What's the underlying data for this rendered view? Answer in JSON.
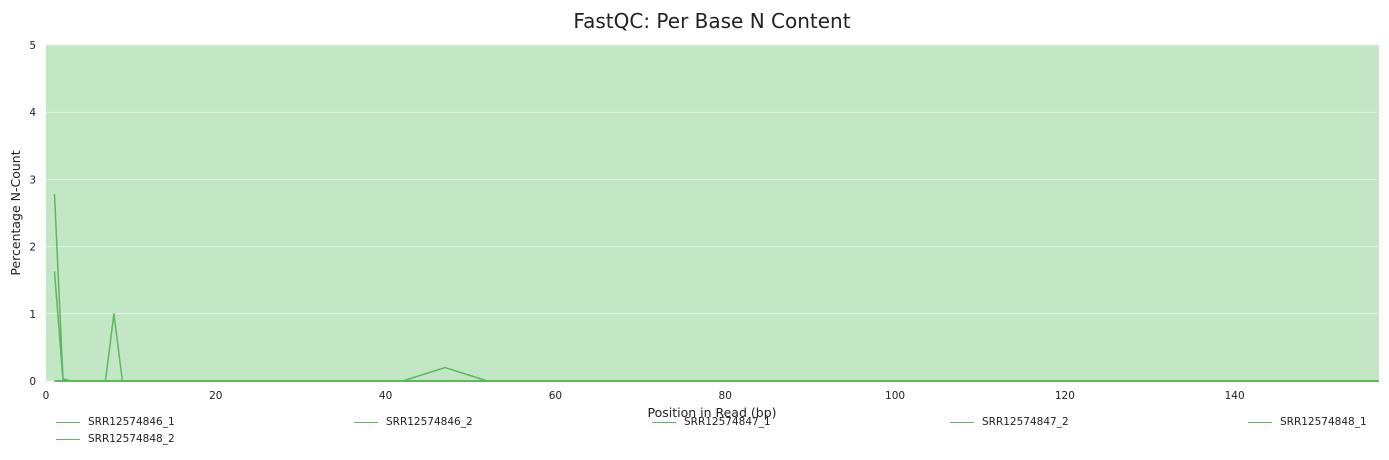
{
  "chart_data": {
    "type": "line",
    "title": "FastQC: Per Base N Content",
    "xlabel": "Position in Read (bp)",
    "ylabel": "Percentage N-Count",
    "xlim": [
      0,
      157
    ],
    "ylim": [
      0,
      5
    ],
    "x_ticks": [
      0,
      20,
      40,
      60,
      80,
      100,
      120,
      140
    ],
    "y_ticks": [
      0,
      1,
      2,
      3,
      4,
      5
    ],
    "background_color": "#c3e6c5",
    "grid_color": "#e3f2e3",
    "line_color": "#5cb85c",
    "grid": true,
    "legend_position": "bottom",
    "series": [
      {
        "name": "SRR12574846_1",
        "points": [
          [
            1,
            1.63
          ],
          [
            2,
            0.02
          ],
          [
            3,
            0
          ],
          [
            157,
            0
          ]
        ]
      },
      {
        "name": "SRR12574846_2",
        "points": [
          [
            1,
            2.78
          ],
          [
            2,
            0.03
          ],
          [
            3,
            0
          ],
          [
            157,
            0
          ]
        ]
      },
      {
        "name": "SRR12574847_1",
        "points": [
          [
            1,
            0
          ],
          [
            7,
            0
          ],
          [
            8,
            1.0
          ],
          [
            9,
            0
          ],
          [
            157,
            0
          ]
        ]
      },
      {
        "name": "SRR12574847_2",
        "points": [
          [
            1,
            0
          ],
          [
            42,
            0
          ],
          [
            47,
            0.2
          ],
          [
            52,
            0
          ],
          [
            157,
            0
          ]
        ]
      },
      {
        "name": "SRR12574848_1",
        "points": [
          [
            1,
            0
          ],
          [
            157,
            0
          ]
        ]
      },
      {
        "name": "SRR12574848_2",
        "points": [
          [
            1,
            0
          ],
          [
            157,
            0
          ]
        ]
      }
    ]
  }
}
